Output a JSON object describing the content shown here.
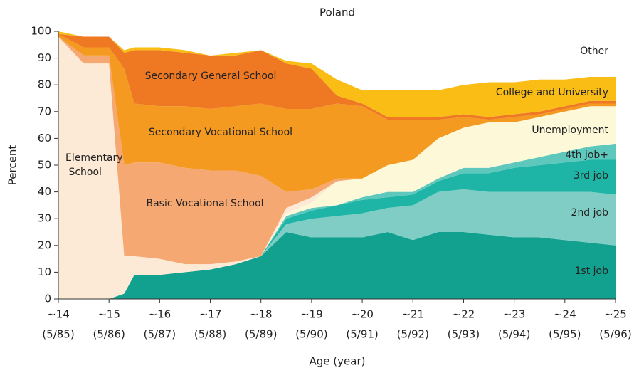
{
  "chart_data": {
    "type": "stacked_area",
    "title": "Poland",
    "x_label": "Age (year)",
    "y_label": "Percent",
    "x": [
      14,
      14.5,
      15,
      15.3,
      15.5,
      16,
      16.5,
      17,
      17.5,
      18,
      18.5,
      19,
      19.5,
      20,
      20.5,
      21,
      21.5,
      22,
      22.5,
      23,
      23.5,
      24,
      24.5,
      25
    ],
    "xlim": [
      14,
      25
    ],
    "xticks": [
      {
        "value": 14,
        "label": "∼14"
      },
      {
        "value": 15,
        "label": "∼15"
      },
      {
        "value": 16,
        "label": "∼16"
      },
      {
        "value": 17,
        "label": "∼17"
      },
      {
        "value": 18,
        "label": "∼18"
      },
      {
        "value": 19,
        "label": "∼19"
      },
      {
        "value": 20,
        "label": "∼20"
      },
      {
        "value": 21,
        "label": "∼21"
      },
      {
        "value": 22,
        "label": "∼22"
      },
      {
        "value": 23,
        "label": "∼23"
      },
      {
        "value": 24,
        "label": "∼24"
      },
      {
        "value": 25,
        "label": "∼25"
      }
    ],
    "xtick_dates": [
      "(5/85)",
      "(5/86)",
      "(5/87)",
      "(5/88)",
      "(5/89)",
      "(5/90)",
      "(5/91)",
      "(5/92)",
      "(5/93)",
      "(5/94)",
      "(5/95)",
      "(5/96)"
    ],
    "ylim": [
      0,
      100
    ],
    "yticks": [
      0,
      10,
      20,
      30,
      40,
      50,
      60,
      70,
      80,
      90,
      100
    ],
    "series": [
      {
        "name": "1st job",
        "color": "#12a08f",
        "values": [
          0,
          0,
          0,
          2,
          9,
          9,
          10,
          11,
          13,
          16,
          25,
          23,
          23,
          23,
          25,
          22,
          25,
          25,
          24,
          23,
          23,
          22,
          21,
          20
        ]
      },
      {
        "name": "2nd job",
        "color": "#7fcdc4",
        "values": [
          0,
          0,
          0,
          0,
          0,
          0,
          0,
          0,
          0,
          0,
          3,
          7,
          8,
          9,
          9,
          13,
          15,
          16,
          16,
          17,
          17,
          18,
          19,
          19
        ]
      },
      {
        "name": "3rd job",
        "color": "#1fb5a6",
        "values": [
          0,
          0,
          0,
          0,
          0,
          0,
          0,
          0,
          0,
          0,
          2,
          3,
          4,
          5,
          4,
          4,
          4,
          6,
          7,
          9,
          10,
          11,
          12,
          13
        ]
      },
      {
        "name": "4th job+",
        "color": "#5ec8bd",
        "values": [
          0,
          0,
          0,
          0,
          0,
          0,
          0,
          0,
          0,
          0,
          1,
          1,
          0,
          1,
          2,
          1,
          1,
          2,
          2,
          2,
          3,
          4,
          5,
          6
        ]
      },
      {
        "name": "Unemployment",
        "color": "#fdf8d8",
        "values": [
          0,
          0,
          0,
          0,
          0,
          0,
          0,
          0,
          0,
          0,
          1,
          2,
          9,
          7,
          10,
          12,
          15,
          15,
          17,
          15,
          15,
          15,
          15,
          14
        ]
      },
      {
        "name": "Elementary School",
        "color": "#fdead6",
        "values": [
          98,
          88,
          88,
          14,
          7,
          6,
          3,
          2,
          1,
          0,
          2,
          2,
          0,
          0,
          0,
          0,
          0,
          0,
          0,
          0,
          0,
          0,
          0,
          0
        ]
      },
      {
        "name": "Basic Vocational School",
        "color": "#f6a872",
        "values": [
          0,
          3,
          3,
          34,
          35,
          36,
          36,
          35,
          34,
          30,
          6,
          3,
          1,
          0,
          0,
          0,
          0,
          0,
          0,
          0,
          0,
          0,
          0,
          0
        ]
      },
      {
        "name": "Secondary Vocational School",
        "color": "#f49a20",
        "values": [
          1,
          3,
          3,
          36,
          22,
          21,
          23,
          23,
          24,
          27,
          31,
          30,
          28,
          27,
          17,
          15,
          7,
          4,
          1,
          2,
          1,
          1,
          1,
          1
        ]
      },
      {
        "name": "Secondary General School",
        "color": "#ef7823",
        "values": [
          0,
          4,
          4,
          6,
          20,
          21,
          20,
          20,
          19,
          20,
          17,
          15,
          3,
          1,
          1,
          1,
          1,
          1,
          1,
          1,
          1,
          1,
          1,
          1
        ]
      },
      {
        "name": "College and University",
        "color": "#f9bd16",
        "values": [
          1,
          0,
          0,
          1,
          1,
          1,
          1,
          0,
          1,
          0,
          1,
          2,
          6,
          5,
          10,
          10,
          10,
          11,
          13,
          12,
          12,
          10,
          9,
          9
        ]
      },
      {
        "name": "Other",
        "color": "#ffffff",
        "values": [
          0,
          2,
          2,
          7,
          6,
          6,
          7,
          9,
          8,
          7,
          11,
          12,
          18,
          22,
          22,
          22,
          22,
          20,
          19,
          19,
          18,
          18,
          17,
          17
        ]
      }
    ]
  }
}
